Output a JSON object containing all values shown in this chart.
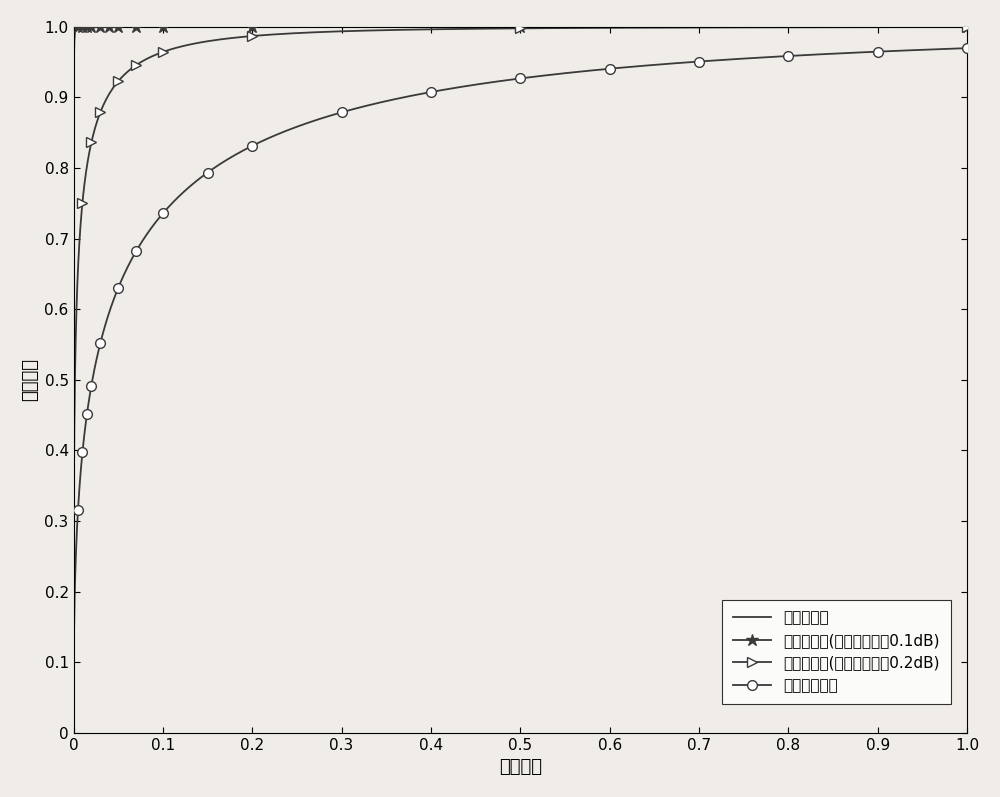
{
  "xlabel": "虚警概率",
  "ylabel": "检测概率",
  "xlim": [
    0,
    1
  ],
  "ylim": [
    0,
    1
  ],
  "xticks": [
    0.0,
    0.1,
    0.2,
    0.3,
    0.4,
    0.5,
    0.6,
    0.7,
    0.8,
    0.9,
    1.0
  ],
  "yticks": [
    0.0,
    0.1,
    0.2,
    0.3,
    0.4,
    0.5,
    0.6,
    0.7,
    0.8,
    0.9,
    1.0
  ],
  "line_color": "#3a3a3a",
  "legend_labels": [
    "本发明方法",
    "能量检测法(噪声不确定度0.1dB)",
    "能量检测法(噪声不确定度0.2dB)",
    "特征値检测法"
  ],
  "curve1_k": 200,
  "curve1_p": 0.4,
  "curve2_k": 55,
  "curve2_p": 0.38,
  "curve3_k": 8.0,
  "curve3_p": 0.38,
  "curve4_k": 3.5,
  "curve4_p": 0.42,
  "markers2_x": [
    0.005,
    0.01,
    0.015,
    0.02,
    0.03,
    0.04,
    0.05,
    0.07,
    0.1,
    0.2,
    0.5,
    1.0
  ],
  "markers3_x": [
    0.01,
    0.02,
    0.03,
    0.05,
    0.07,
    0.1,
    0.2,
    0.5,
    1.0
  ],
  "markers4_x": [
    0.005,
    0.01,
    0.015,
    0.02,
    0.03,
    0.05,
    0.07,
    0.1,
    0.15,
    0.2,
    0.3,
    0.4,
    0.5,
    0.6,
    0.7,
    0.8,
    0.9,
    1.0
  ],
  "font_size_label": 13,
  "font_size_tick": 11,
  "font_size_legend": 11,
  "background_color": "#f0ece8",
  "figsize": [
    10.0,
    7.97
  ],
  "dpi": 100
}
